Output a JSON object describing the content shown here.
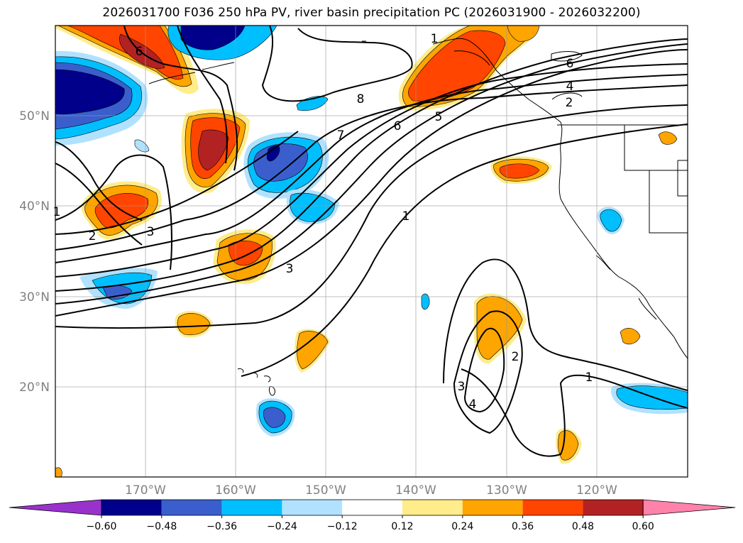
{
  "title": "2026031700 F036 250 hPa PV, river basin precipitation PC (2026031900 - 2026032200)",
  "map": {
    "lat_labels": [
      "50°N",
      "40°N",
      "30°N",
      "20°N"
    ],
    "lon_labels": [
      "170°W",
      "160°W",
      "150°W",
      "140°W",
      "130°W",
      "120°W"
    ],
    "contour_labels": [
      "6",
      "8",
      "7",
      "6",
      "5",
      "4",
      "2",
      "6",
      "1",
      "2",
      "3",
      "3",
      "1",
      "2",
      "3",
      "4",
      "1",
      "1"
    ]
  },
  "colorbar": {
    "ticks": [
      "−0.60",
      "−0.48",
      "−0.36",
      "−0.24",
      "−0.12",
      "0.12",
      "0.24",
      "0.36",
      "0.48",
      "0.60"
    ],
    "colors": [
      "#9932CC",
      "#00008B",
      "#3A5FCD",
      "#00BFFF",
      "#B0E2FF",
      "#FFFFFF",
      "#FFEC8B",
      "#FFA500",
      "#FF4500",
      "#B22222",
      "#FF82AB"
    ]
  }
}
